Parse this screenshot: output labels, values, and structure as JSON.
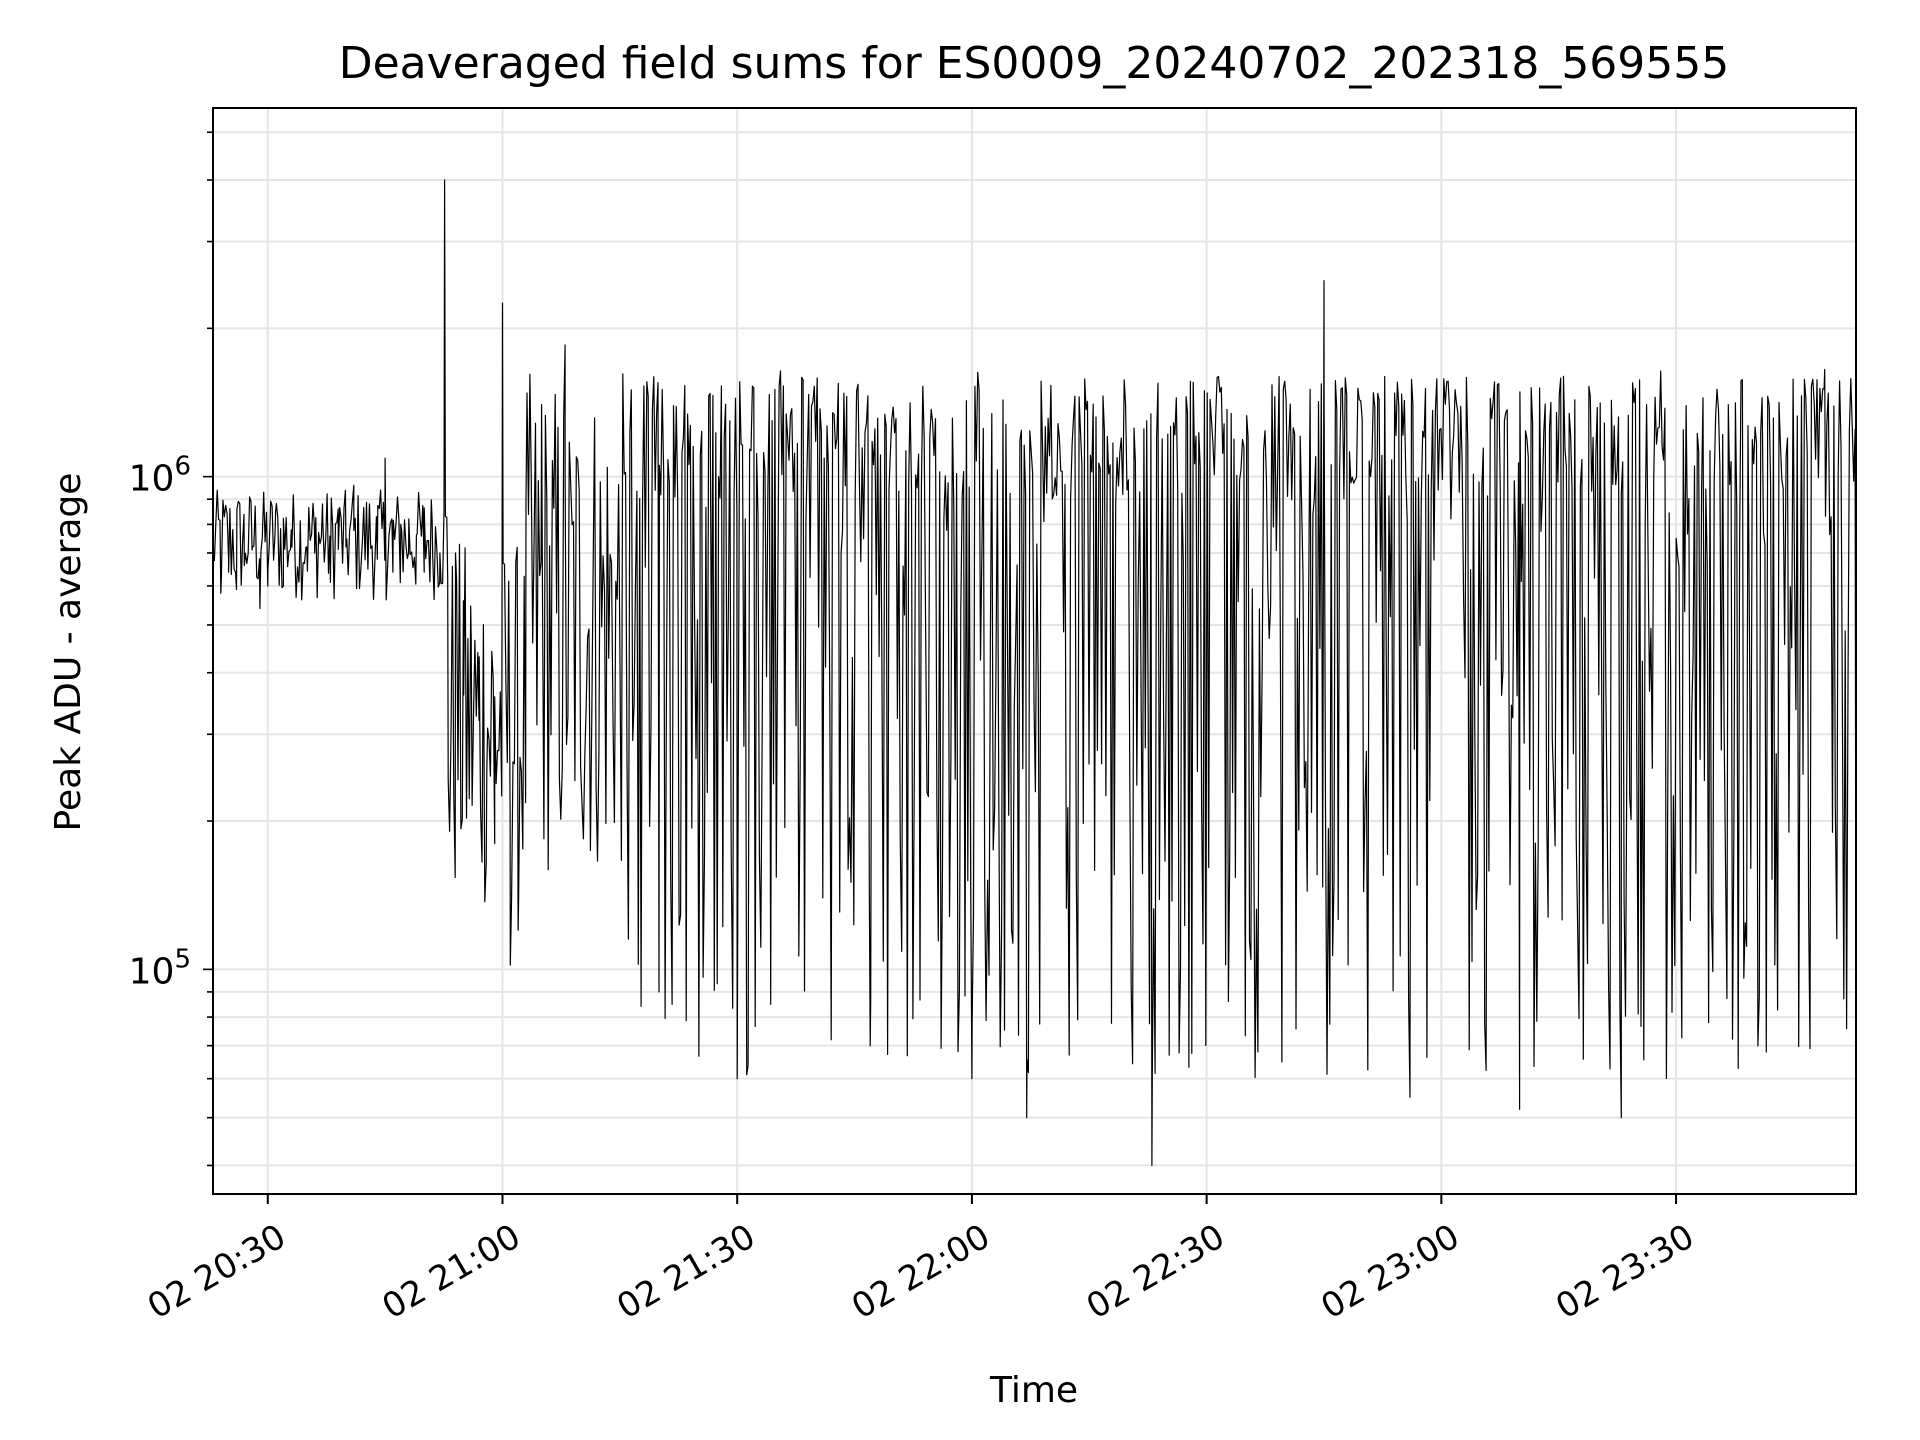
{
  "chart_data": {
    "type": "line",
    "title": "Deaveraged field sums for ES0009_20240702_202318_569555",
    "xlabel": "Time",
    "ylabel": "Peak ADU - average",
    "x_tick_labels": [
      "02 20:30",
      "02 21:00",
      "02 21:30",
      "02 22:00",
      "02 22:30",
      "02 23:00",
      "02 23:30"
    ],
    "x_tick_minutes": [
      1230,
      1260,
      1290,
      1320,
      1350,
      1380,
      1410
    ],
    "y_tick_labels": [
      {
        "base": "10",
        "exp": "5"
      },
      {
        "base": "10",
        "exp": "6"
      }
    ],
    "y_tick_values": [
      100000,
      1000000
    ],
    "yscale": "log",
    "ylim": [
      35000,
      5600000
    ],
    "xlim_start": "02 20:23",
    "xlim_end": "02 23:53",
    "grid": true,
    "line_color": "#000000",
    "grid_color": "#e5e5e5",
    "series": [
      {
        "x_start": "02 20:23",
        "x_end": "02 23:53",
        "keypoints": [
          [
            "02 20:23",
            700000
          ],
          [
            "02 20:24",
            580000
          ],
          [
            "02 20:25",
            640000
          ],
          [
            "02 20:26",
            590000
          ],
          [
            "02 20:27",
            660000
          ],
          [
            "02 20:28",
            710000
          ],
          [
            "02 20:29",
            540000
          ],
          [
            "02 20:30",
            600000
          ],
          [
            "02 20:31",
            850000
          ],
          [
            "02 20:32",
            600000
          ],
          [
            "02 20:33",
            780000
          ],
          [
            "02 20:34",
            620000
          ],
          [
            "02 20:35",
            720000
          ],
          [
            "02 20:36",
            700000
          ],
          [
            "02 20:37",
            880000
          ],
          [
            "02 20:38",
            610000
          ],
          [
            "02 20:39",
            860000
          ],
          [
            "02 20:40",
            720000
          ],
          [
            "02 20:41",
            960000
          ],
          [
            "02 20:42",
            700000
          ],
          [
            "02 20:43",
            880000
          ],
          [
            "02 20:44",
            680000
          ],
          [
            "02 20:45",
            1090000
          ],
          [
            "02 20:46",
            640000
          ],
          [
            "02 20:47",
            800000
          ],
          [
            "02 20:48",
            700000
          ],
          [
            "02 20:49",
            760000
          ],
          [
            "02 20:50",
            640000
          ],
          [
            "02 20:51",
            820000
          ],
          [
            "02 20:52",
            700000
          ],
          [
            "02 20:52.6",
            4000000
          ],
          [
            "02 20:53",
            620000
          ],
          [
            "02 20:54",
            700000
          ],
          [
            "02 20:55",
            560000
          ],
          [
            "02 20:56",
            470000
          ],
          [
            "02 20:57",
            320000
          ],
          [
            "02 20:58",
            250000
          ],
          [
            "02 20:59",
            180000
          ],
          [
            "02 21:00",
            2250000
          ],
          [
            "02 21:01",
            102000
          ],
          [
            "02 21:02",
            120000
          ],
          [
            "02 21:03",
            900000
          ],
          [
            "02 21:05",
            1400000
          ],
          [
            "02 21:08",
            1850000
          ],
          [
            "02 21:20",
            90000
          ],
          [
            "02 21:30",
            60000
          ],
          [
            "02 21:47",
            70000
          ],
          [
            "02 22:00",
            60000
          ],
          [
            "02 22:07",
            50000
          ],
          [
            "02 22:23",
            40000
          ],
          [
            "02 22:45",
            2500000
          ],
          [
            "02 22:56",
            55000
          ],
          [
            "02 23:10",
            52000
          ],
          [
            "02 23:23",
            50000
          ],
          [
            "02 23:49",
            1650000
          ],
          [
            "02 23:53",
            70000
          ]
        ]
      }
    ]
  }
}
